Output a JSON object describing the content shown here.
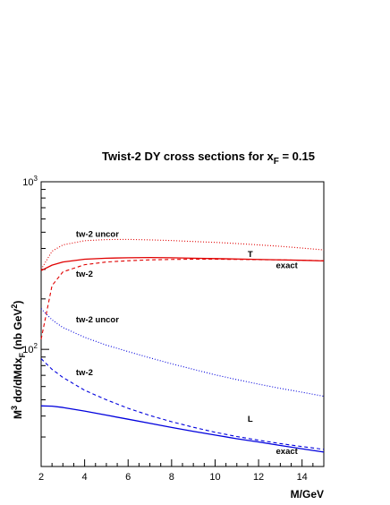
{
  "chart_data": {
    "type": "line",
    "title": "Twist-2 DY cross sections  for x",
    "title_sub": "F",
    "title_rest": " = 0.15",
    "xlabel": "M/GeV",
    "ylabel": {
      "main": "M",
      "sup1": "3",
      "mid": " dσ/dMdx",
      "sub": "F",
      "unit": " (nb GeV",
      "sup2": "2",
      "close": ")"
    },
    "xlim": [
      2,
      15
    ],
    "ylim": [
      20,
      1000
    ],
    "yscale": "log",
    "x_ticks": [
      2,
      4,
      6,
      8,
      10,
      12,
      14
    ],
    "y_ticks": [
      {
        "value": 100,
        "base": "10",
        "exp": "2"
      },
      {
        "value": 1000,
        "base": "10",
        "exp": "3"
      }
    ],
    "x": [
      2.0,
      2.5,
      3,
      4,
      5,
      6,
      7,
      8,
      9,
      10,
      11,
      12,
      13,
      14,
      15
    ],
    "series": [
      {
        "name": "exact",
        "component": "T",
        "color": "#e00000",
        "style": "solid",
        "values": [
          295,
          318,
          332,
          345,
          350,
          352,
          353,
          352,
          350,
          348,
          346,
          344,
          342,
          340,
          337
        ]
      },
      {
        "name": "tw-2",
        "component": "T",
        "color": "#e00000",
        "style": "dashed",
        "values": [
          115,
          240,
          290,
          320,
          332,
          338,
          342,
          344,
          345,
          345,
          344,
          343,
          342,
          340,
          338
        ]
      },
      {
        "name": "tw-2 uncor",
        "component": "T",
        "color": "#e00000",
        "style": "dotted",
        "values": [
          300,
          385,
          420,
          445,
          452,
          453,
          450,
          446,
          440,
          435,
          428,
          420,
          412,
          402,
          392
        ]
      },
      {
        "name": "exact",
        "component": "L",
        "color": "#0000dd",
        "style": "solid",
        "values": [
          46,
          45.8,
          45,
          42.8,
          40.5,
          38.3,
          36.2,
          34.2,
          32.4,
          30.8,
          29.3,
          28,
          26.7,
          25.5,
          24.4
        ]
      },
      {
        "name": "tw-2",
        "component": "L",
        "color": "#0000dd",
        "style": "dashed",
        "values": [
          88,
          76,
          68,
          57,
          50,
          44.5,
          40.3,
          37,
          34.3,
          32,
          30.2,
          28.7,
          27.4,
          26.3,
          25.3
        ]
      },
      {
        "name": "tw-2 uncor",
        "component": "L",
        "color": "#0000dd",
        "style": "dotted",
        "values": [
          175,
          150,
          135,
          118,
          106,
          97,
          89,
          82,
          76,
          70.5,
          66,
          62,
          58.5,
          55.5,
          52.5
        ]
      }
    ],
    "annotations": [
      {
        "text": "tw-2 uncor",
        "x": 3.6,
        "y": 470
      },
      {
        "text": "T",
        "x": 11.5,
        "y": 355
      },
      {
        "text": "exact",
        "x": 12.8,
        "y": 305
      },
      {
        "text": "tw-2",
        "x": 3.6,
        "y": 272
      },
      {
        "text": "tw-2 uncor",
        "x": 3.6,
        "y": 145
      },
      {
        "text": "tw-2",
        "x": 3.6,
        "y": 70
      },
      {
        "text": "L",
        "x": 11.5,
        "y": 37
      },
      {
        "text": "exact",
        "x": 12.8,
        "y": 23.8
      }
    ]
  }
}
